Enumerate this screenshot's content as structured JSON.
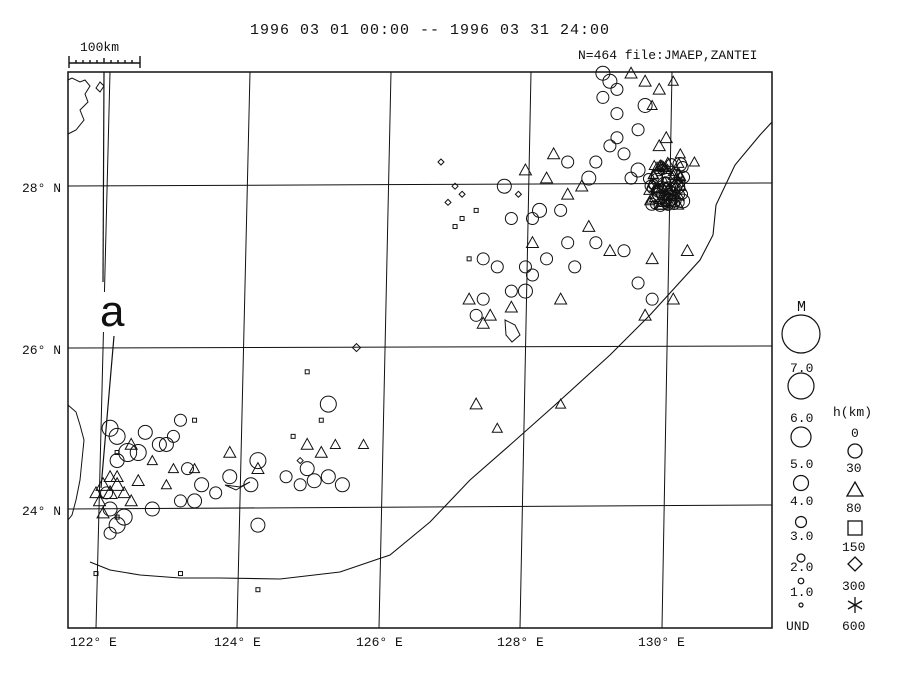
{
  "header": {
    "period": "1996 03 01 00:00 -- 1996 03 31 24:00",
    "info": "N=464 file:JMAEP,ZANTEI"
  },
  "scale_bar": {
    "label": "100km"
  },
  "map": {
    "lat_labels": [
      "28° N",
      "26° N",
      "24° N"
    ],
    "lon_labels": [
      "122° E",
      "124° E",
      "126° E",
      "128° E",
      "130° E"
    ],
    "annotation": "a"
  },
  "legend": {
    "magnitude_title": "M",
    "magnitude_labels": [
      "7.0",
      "6.0",
      "5.0",
      "4.0",
      "3.0",
      "2.0",
      "1.0",
      "UND"
    ],
    "depth_title": "h(km)",
    "depth_labels": [
      "0",
      "30",
      "80",
      "150",
      "300",
      "600"
    ],
    "depth_symbols": [
      "circle-icon",
      "triangle-icon",
      "square-icon",
      "diamond-icon",
      "asterisk-icon"
    ]
  },
  "chart_data": {
    "type": "scatter",
    "title": "1996 03 01 00:00 -- 1996 03 31 24:00",
    "count": 464,
    "xlim": [
      121.7,
      131.3
    ],
    "ylim": [
      22.5,
      29.3
    ],
    "series": [
      {
        "name": "0",
        "symbol": "circle",
        "points": [
          [
            122.2,
            25.0,
            5.0
          ],
          [
            122.3,
            24.9,
            5.0
          ],
          [
            122.45,
            24.7,
            5.5
          ],
          [
            122.6,
            24.7,
            5.0
          ],
          [
            122.3,
            24.6,
            4.5
          ],
          [
            122.7,
            24.95,
            4.5
          ],
          [
            123.0,
            24.8,
            4.5
          ],
          [
            123.2,
            25.1,
            4.0
          ],
          [
            123.1,
            24.9,
            4.0
          ],
          [
            122.9,
            24.8,
            4.5
          ],
          [
            123.3,
            24.5,
            4.0
          ],
          [
            123.5,
            24.3,
            4.5
          ],
          [
            123.9,
            24.4,
            4.5
          ],
          [
            124.2,
            24.3,
            4.5
          ],
          [
            124.3,
            24.6,
            5.0
          ],
          [
            125.0,
            24.5,
            4.5
          ],
          [
            125.1,
            24.35,
            4.5
          ],
          [
            125.3,
            24.4,
            4.5
          ],
          [
            125.5,
            24.3,
            4.5
          ],
          [
            125.3,
            25.3,
            5.0
          ],
          [
            122.2,
            24.0,
            4.5
          ],
          [
            122.4,
            23.9,
            5.0
          ],
          [
            122.3,
            23.8,
            5.0
          ],
          [
            122.2,
            23.7,
            4.0
          ],
          [
            122.8,
            24.0,
            4.5
          ],
          [
            123.2,
            24.1,
            4.0
          ],
          [
            123.4,
            24.1,
            4.5
          ],
          [
            123.7,
            24.2,
            4.0
          ],
          [
            124.3,
            23.8,
            4.5
          ],
          [
            124.7,
            24.4,
            4.0
          ],
          [
            124.9,
            24.3,
            4.0
          ],
          [
            122.15,
            24.2,
            4.0
          ],
          [
            127.8,
            28.0,
            4.5
          ],
          [
            127.9,
            27.6,
            4.0
          ],
          [
            128.3,
            27.7,
            4.5
          ],
          [
            128.6,
            27.7,
            4.0
          ],
          [
            128.4,
            27.1,
            4.0
          ],
          [
            128.2,
            26.9,
            4.0
          ],
          [
            128.1,
            26.7,
            4.5
          ],
          [
            127.9,
            26.7,
            4.0
          ],
          [
            128.1,
            27.0,
            4.0
          ],
          [
            128.8,
            27.0,
            4.0
          ],
          [
            129.1,
            27.3,
            4.0
          ],
          [
            129.5,
            27.2,
            4.0
          ],
          [
            129.7,
            26.8,
            4.0
          ],
          [
            129.9,
            26.6,
            4.0
          ],
          [
            129.7,
            28.2,
            4.5
          ],
          [
            129.0,
            28.1,
            4.5
          ],
          [
            129.1,
            28.3,
            4.0
          ],
          [
            129.4,
            28.6,
            4.0
          ],
          [
            129.8,
            29.0,
            4.5
          ],
          [
            129.4,
            28.9,
            4.0
          ],
          [
            129.7,
            28.7,
            4.0
          ],
          [
            129.5,
            28.4,
            4.0
          ],
          [
            129.6,
            28.1,
            4.0
          ],
          [
            129.3,
            28.5,
            4.0
          ],
          [
            129.2,
            29.4,
            4.5
          ],
          [
            129.4,
            29.2,
            4.0
          ],
          [
            129.3,
            29.3,
            4.5
          ],
          [
            129.2,
            29.1,
            4.0
          ],
          [
            128.7,
            28.3,
            4.0
          ],
          [
            127.7,
            27.0,
            4.0
          ],
          [
            127.5,
            27.1,
            4.0
          ],
          [
            127.5,
            26.6,
            4.0
          ],
          [
            127.4,
            26.4,
            4.0
          ],
          [
            128.2,
            27.6,
            4.0
          ],
          [
            128.7,
            27.3,
            4.0
          ]
        ]
      },
      {
        "name": "30",
        "symbol": "triangle",
        "points": [
          [
            122.1,
            24.3,
            4.5
          ],
          [
            122.2,
            24.2,
            4.5
          ],
          [
            122.3,
            24.3,
            4.5
          ],
          [
            122.4,
            24.2,
            4.0
          ],
          [
            122.5,
            24.1,
            4.0
          ],
          [
            122.05,
            24.1,
            4.0
          ],
          [
            122.2,
            24.4,
            4.0
          ],
          [
            122.3,
            24.4,
            4.0
          ],
          [
            122.1,
            23.95,
            4.0
          ],
          [
            122.0,
            24.2,
            4.0
          ],
          [
            122.5,
            24.8,
            4.0
          ],
          [
            122.8,
            24.6,
            3.5
          ],
          [
            123.1,
            24.5,
            3.5
          ],
          [
            123.4,
            24.5,
            3.5
          ],
          [
            123.9,
            24.7,
            4.0
          ],
          [
            124.3,
            24.5,
            4.0
          ],
          [
            125.0,
            24.8,
            4.0
          ],
          [
            125.2,
            24.7,
            4.0
          ],
          [
            125.4,
            24.8,
            3.5
          ],
          [
            125.8,
            24.8,
            3.5
          ],
          [
            123.0,
            24.3,
            3.5
          ],
          [
            122.6,
            24.35,
            4.0
          ],
          [
            128.1,
            28.2,
            4.0
          ],
          [
            128.4,
            28.1,
            4.0
          ],
          [
            128.5,
            28.4,
            4.0
          ],
          [
            128.9,
            28.0,
            4.0
          ],
          [
            129.0,
            27.5,
            4.0
          ],
          [
            129.3,
            27.2,
            4.0
          ],
          [
            128.7,
            27.9,
            4.0
          ],
          [
            128.2,
            27.3,
            4.0
          ],
          [
            127.9,
            26.5,
            4.0
          ],
          [
            127.6,
            26.4,
            4.0
          ],
          [
            127.3,
            26.6,
            4.0
          ],
          [
            127.5,
            26.3,
            4.0
          ],
          [
            128.6,
            26.6,
            4.0
          ],
          [
            129.9,
            27.1,
            4.0
          ],
          [
            130.2,
            26.6,
            4.0
          ],
          [
            130.4,
            27.2,
            4.0
          ],
          [
            129.8,
            26.4,
            4.0
          ],
          [
            127.4,
            25.3,
            4.0
          ],
          [
            128.6,
            25.3,
            3.5
          ],
          [
            127.7,
            25.0,
            3.5
          ],
          [
            129.8,
            29.3,
            4.0
          ],
          [
            130.0,
            29.2,
            4.0
          ],
          [
            130.2,
            29.3,
            3.5
          ],
          [
            129.9,
            29.0,
            3.5
          ],
          [
            130.1,
            28.6,
            4.0
          ],
          [
            130.3,
            28.4,
            3.5
          ],
          [
            130.5,
            28.3,
            3.5
          ],
          [
            129.6,
            29.4,
            4.0
          ],
          [
            130.0,
            28.5,
            4.0
          ]
        ]
      },
      {
        "name": "80",
        "symbol": "square",
        "points": [
          [
            122.3,
            24.7,
            3.0
          ],
          [
            123.4,
            25.1,
            3.0
          ],
          [
            124.8,
            24.9,
            3.0
          ],
          [
            125.2,
            25.1,
            3.0
          ],
          [
            127.2,
            27.6,
            3.0
          ],
          [
            127.4,
            27.7,
            3.0
          ],
          [
            127.1,
            27.5,
            3.0
          ],
          [
            127.3,
            27.1,
            3.0
          ],
          [
            122.0,
            23.2,
            3.0
          ],
          [
            123.2,
            23.2,
            3.0
          ],
          [
            124.3,
            23.0,
            3.0
          ],
          [
            125.0,
            25.7,
            3.0
          ],
          [
            122.3,
            23.9,
            3.0
          ]
        ]
      },
      {
        "name": "150",
        "symbol": "diamond",
        "points": [
          [
            125.7,
            26.0,
            3.0
          ],
          [
            127.1,
            28.0,
            2.5
          ],
          [
            127.0,
            27.8,
            2.5
          ],
          [
            128.0,
            27.9,
            2.5
          ],
          [
            127.2,
            27.9,
            2.5
          ],
          [
            126.9,
            28.3,
            2.5
          ],
          [
            124.9,
            24.6,
            2.5
          ]
        ]
      }
    ]
  }
}
